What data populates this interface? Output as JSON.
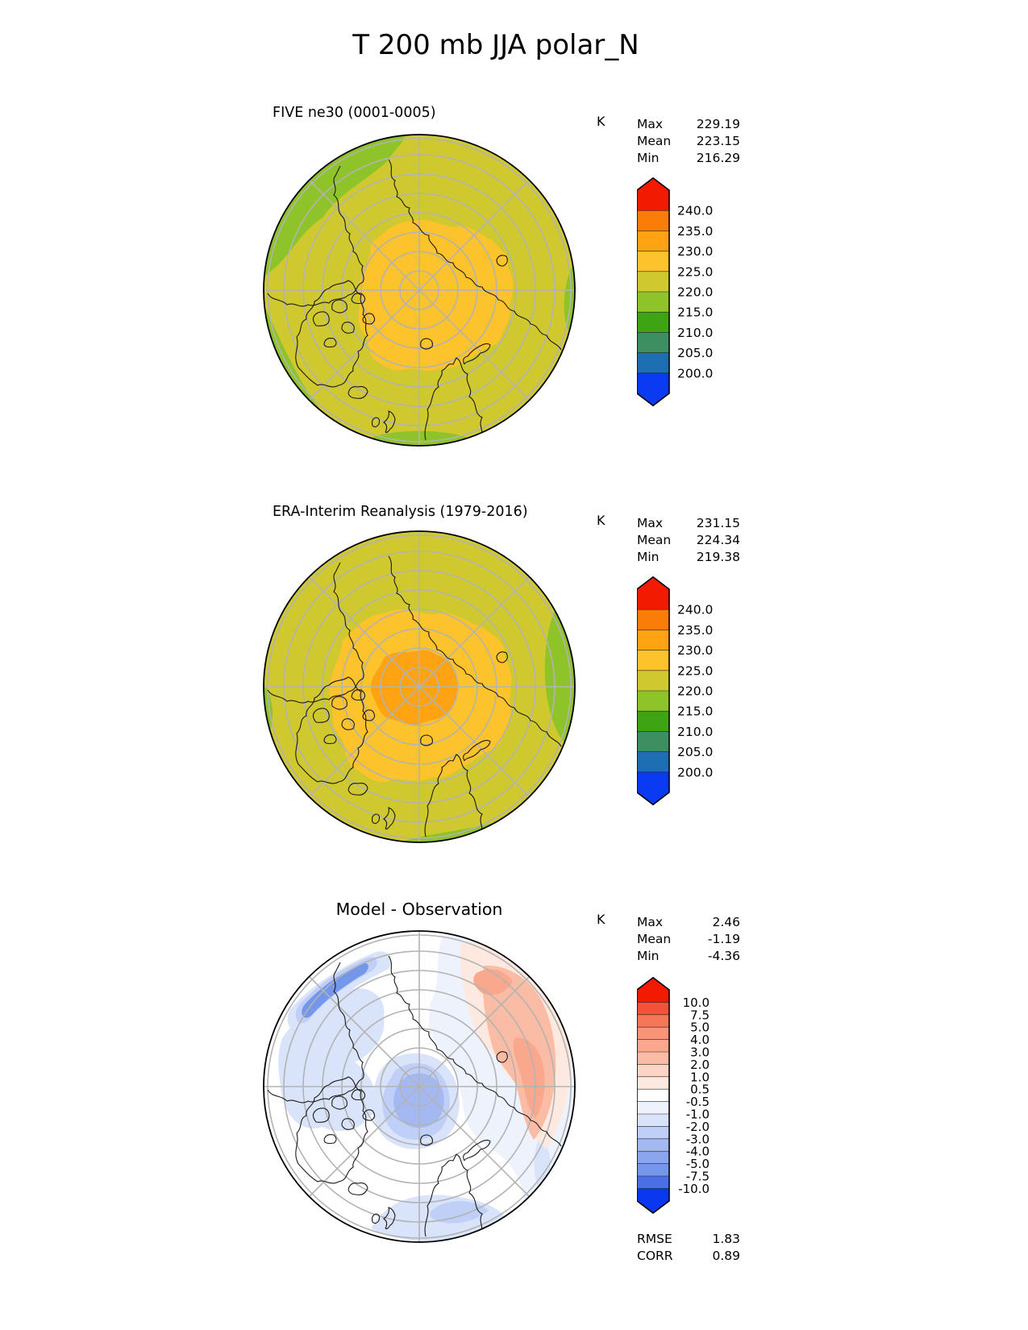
{
  "title": "T 200 mb JJA polar_N",
  "stats_labels": {
    "max": "Max",
    "mean": "Mean",
    "min": "Min",
    "rmse": "RMSE",
    "corr": "CORR"
  },
  "map_style": {
    "base_warm": "#cfc82f",
    "base_diff": "#ffffff",
    "graticule": "#b3b3b3",
    "coastline": "#1a1a1a",
    "outline": "#000000"
  },
  "chart_data": [
    {
      "type": "filled_contour_polar_map",
      "title": "FIVE ne30 (0001-0005)",
      "unit": "K",
      "projection": "north-polar-stereographic",
      "stats": {
        "max": 229.19,
        "mean": 223.15,
        "min": 216.29
      },
      "field_summary": "Mostly 220-225 K (olive) with a 225-230 K (amber) lobe over the central Arctic and 215-220 K (green) patches along the outer edge",
      "colorbar": {
        "labels": [
          "240.0",
          "235.0",
          "230.0",
          "225.0",
          "220.0",
          "215.0",
          "210.0",
          "205.0",
          "200.0"
        ],
        "levels": [
          240,
          235,
          230,
          225,
          220,
          215,
          210,
          205,
          200
        ],
        "colors": [
          "#f21b01",
          "#fa7d09",
          "#ffa312",
          "#fdc32c",
          "#cfc82f",
          "#8fc32a",
          "#3ea414",
          "#3d8e60",
          "#1d6eb2",
          "#0a3af2"
        ]
      }
    },
    {
      "type": "filled_contour_polar_map",
      "title": "ERA-Interim Reanalysis (1979-2016)",
      "unit": "K",
      "projection": "north-polar-stereographic",
      "stats": {
        "max": 231.15,
        "mean": 224.34,
        "min": 219.38
      },
      "field_summary": "220-225 K background with a large 225-230 K amber region and a 230-235 K orange core near the pole; 215-220 K green patch on the eastern edge",
      "colorbar": {
        "labels": [
          "240.0",
          "235.0",
          "230.0",
          "225.0",
          "220.0",
          "215.0",
          "210.0",
          "205.0",
          "200.0"
        ],
        "levels": [
          240,
          235,
          230,
          225,
          220,
          215,
          210,
          205,
          200
        ],
        "colors": [
          "#f21b01",
          "#fa7d09",
          "#ffa312",
          "#fdc32c",
          "#cfc82f",
          "#8fc32a",
          "#3ea414",
          "#3d8e60",
          "#1d6eb2",
          "#0a3af2"
        ]
      }
    },
    {
      "type": "filled_contour_polar_map_difference",
      "title": "Model - Observation",
      "unit": "K",
      "projection": "north-polar-stereographic",
      "stats": {
        "max": 2.46,
        "mean": -1.19,
        "min": -4.36,
        "rmse": 1.83,
        "corr": 0.89
      },
      "field_summary": "Cold bias (blue, down to -4..-5 K) over most of the Arctic with darkest blues northwest; warm bias (red, up to +2.46 K) over the northeastern sector",
      "colorbar": {
        "labels": [
          "10.0",
          "7.5",
          "5.0",
          "4.0",
          "3.0",
          "2.0",
          "1.0",
          "0.5",
          "-0.5",
          "-1.0",
          "-2.0",
          "-3.0",
          "-4.0",
          "-5.0",
          "-7.5",
          "-10.0"
        ],
        "levels": [
          10,
          7.5,
          5,
          4,
          3,
          2,
          1,
          0.5,
          -0.5,
          -1,
          -2,
          -3,
          -4,
          -5,
          -7.5,
          -10
        ],
        "colors": [
          "#f21b01",
          "#f4503a",
          "#f67758",
          "#f89579",
          "#f9a88e",
          "#fbbca6",
          "#fdd5c5",
          "#fee9e1",
          "#ffffff",
          "#edf2fd",
          "#d9e3fa",
          "#bfcff7",
          "#a4b9f2",
          "#8aa6ee",
          "#7496eb",
          "#4a6fe5",
          "#0a38f0"
        ]
      }
    }
  ]
}
